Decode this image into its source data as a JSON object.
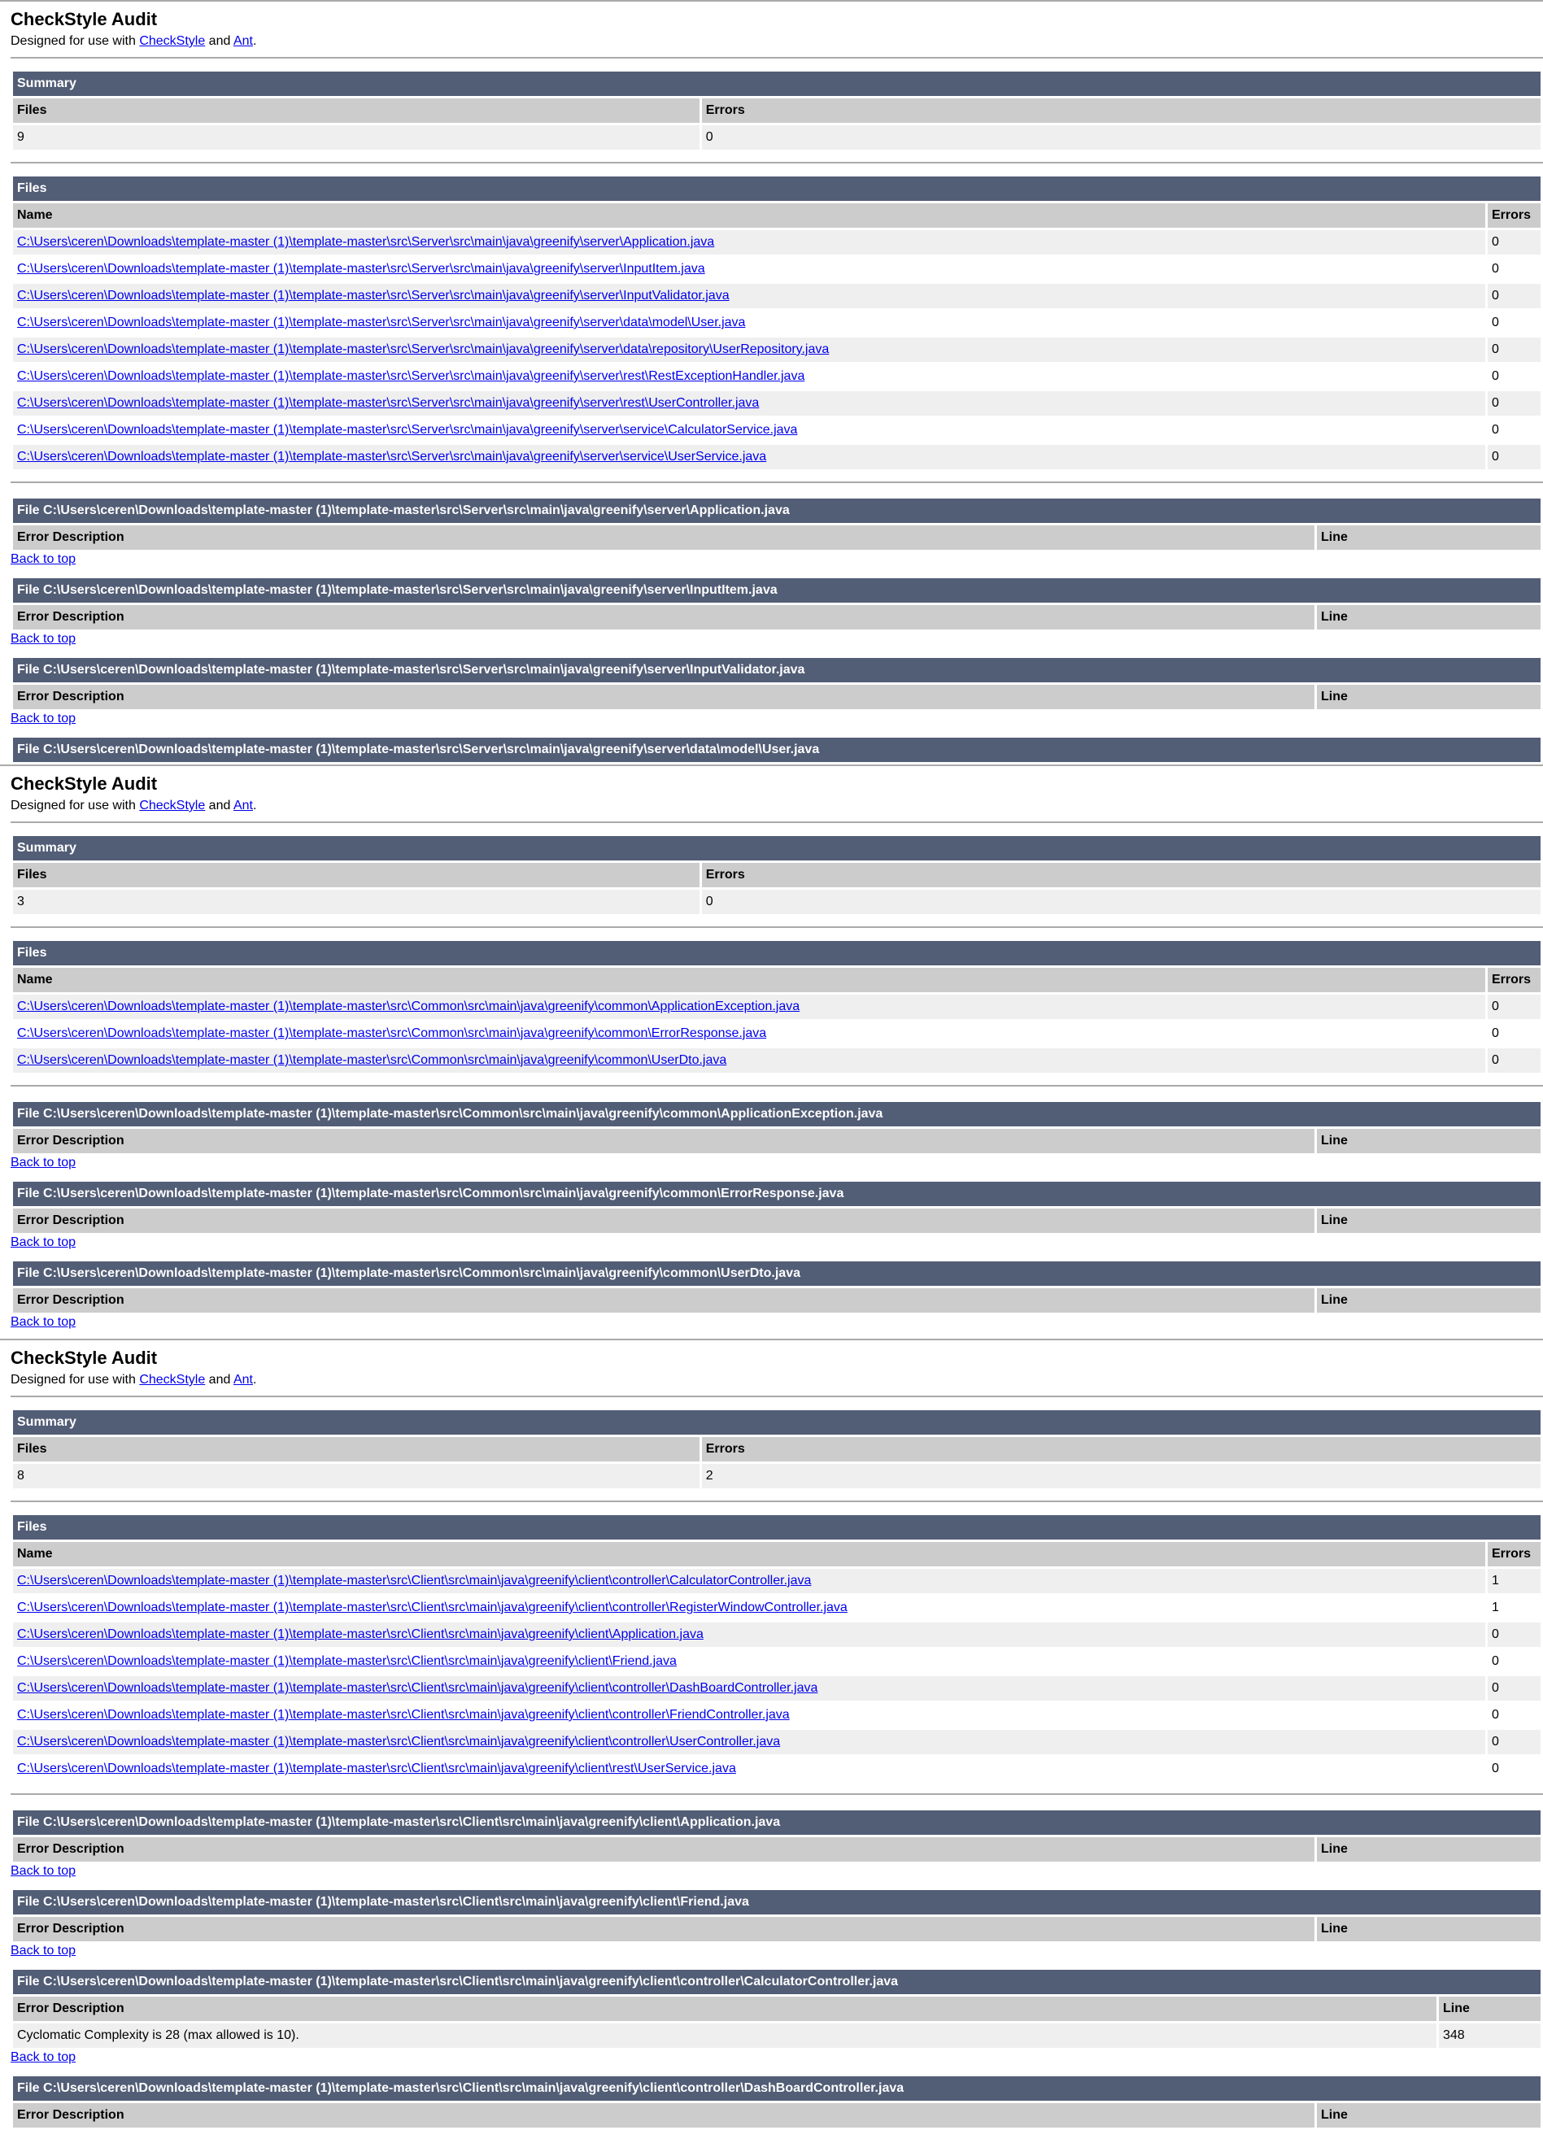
{
  "common": {
    "title": "CheckStyle Audit",
    "designed_prefix": "Designed for use with ",
    "checkstyle_link": "CheckStyle",
    "and": " and ",
    "ant_link": "Ant",
    "period": ".",
    "summary": "Summary",
    "files_col": "Files",
    "errors_col": "Errors",
    "files_header": "Files",
    "name_col": "Name",
    "error_desc_col": "Error Description",
    "line_col": "Line",
    "back_to_top": "Back to top",
    "file_prefix": "File "
  },
  "reports": [
    {
      "files_count": "9",
      "errors_count": "0",
      "files": [
        {
          "name": "C:\\Users\\ceren\\Downloads\\template-master (1)\\template-master\\src\\Server\\src\\main\\java\\greenify\\server\\Application.java",
          "errors": "0"
        },
        {
          "name": "C:\\Users\\ceren\\Downloads\\template-master (1)\\template-master\\src\\Server\\src\\main\\java\\greenify\\server\\InputItem.java",
          "errors": "0"
        },
        {
          "name": "C:\\Users\\ceren\\Downloads\\template-master (1)\\template-master\\src\\Server\\src\\main\\java\\greenify\\server\\InputValidator.java",
          "errors": "0"
        },
        {
          "name": "C:\\Users\\ceren\\Downloads\\template-master (1)\\template-master\\src\\Server\\src\\main\\java\\greenify\\server\\data\\model\\User.java",
          "errors": "0"
        },
        {
          "name": "C:\\Users\\ceren\\Downloads\\template-master (1)\\template-master\\src\\Server\\src\\main\\java\\greenify\\server\\data\\repository\\UserRepository.java",
          "errors": "0"
        },
        {
          "name": "C:\\Users\\ceren\\Downloads\\template-master (1)\\template-master\\src\\Server\\src\\main\\java\\greenify\\server\\rest\\RestExceptionHandler.java",
          "errors": "0"
        },
        {
          "name": "C:\\Users\\ceren\\Downloads\\template-master (1)\\template-master\\src\\Server\\src\\main\\java\\greenify\\server\\rest\\UserController.java",
          "errors": "0"
        },
        {
          "name": "C:\\Users\\ceren\\Downloads\\template-master (1)\\template-master\\src\\Server\\src\\main\\java\\greenify\\server\\service\\CalculatorService.java",
          "errors": "0"
        },
        {
          "name": "C:\\Users\\ceren\\Downloads\\template-master (1)\\template-master\\src\\Server\\src\\main\\java\\greenify\\server\\service\\UserService.java",
          "errors": "0"
        }
      ],
      "sections": [
        {
          "file": "C:\\Users\\ceren\\Downloads\\template-master (1)\\template-master\\src\\Server\\src\\main\\java\\greenify\\server\\Application.java",
          "errors": []
        },
        {
          "file": "C:\\Users\\ceren\\Downloads\\template-master (1)\\template-master\\src\\Server\\src\\main\\java\\greenify\\server\\InputItem.java",
          "errors": []
        },
        {
          "file": "C:\\Users\\ceren\\Downloads\\template-master (1)\\template-master\\src\\Server\\src\\main\\java\\greenify\\server\\InputValidator.java",
          "errors": []
        },
        {
          "file": "C:\\Users\\ceren\\Downloads\\template-master (1)\\template-master\\src\\Server\\src\\main\\java\\greenify\\server\\data\\model\\User.java",
          "errors": [],
          "truncated": true
        }
      ]
    },
    {
      "files_count": "3",
      "errors_count": "0",
      "files": [
        {
          "name": "C:\\Users\\ceren\\Downloads\\template-master (1)\\template-master\\src\\Common\\src\\main\\java\\greenify\\common\\ApplicationException.java",
          "errors": "0"
        },
        {
          "name": "C:\\Users\\ceren\\Downloads\\template-master (1)\\template-master\\src\\Common\\src\\main\\java\\greenify\\common\\ErrorResponse.java",
          "errors": "0"
        },
        {
          "name": "C:\\Users\\ceren\\Downloads\\template-master (1)\\template-master\\src\\Common\\src\\main\\java\\greenify\\common\\UserDto.java",
          "errors": "0"
        }
      ],
      "sections": [
        {
          "file": "C:\\Users\\ceren\\Downloads\\template-master (1)\\template-master\\src\\Common\\src\\main\\java\\greenify\\common\\ApplicationException.java",
          "errors": []
        },
        {
          "file": "C:\\Users\\ceren\\Downloads\\template-master (1)\\template-master\\src\\Common\\src\\main\\java\\greenify\\common\\ErrorResponse.java",
          "errors": []
        },
        {
          "file": "C:\\Users\\ceren\\Downloads\\template-master (1)\\template-master\\src\\Common\\src\\main\\java\\greenify\\common\\UserDto.java",
          "errors": []
        }
      ]
    },
    {
      "files_count": "8",
      "errors_count": "2",
      "files": [
        {
          "name": "C:\\Users\\ceren\\Downloads\\template-master (1)\\template-master\\src\\Client\\src\\main\\java\\greenify\\client\\controller\\CalculatorController.java",
          "errors": "1"
        },
        {
          "name": "C:\\Users\\ceren\\Downloads\\template-master (1)\\template-master\\src\\Client\\src\\main\\java\\greenify\\client\\controller\\RegisterWindowController.java",
          "errors": "1"
        },
        {
          "name": "C:\\Users\\ceren\\Downloads\\template-master (1)\\template-master\\src\\Client\\src\\main\\java\\greenify\\client\\Application.java",
          "errors": "0"
        },
        {
          "name": "C:\\Users\\ceren\\Downloads\\template-master (1)\\template-master\\src\\Client\\src\\main\\java\\greenify\\client\\Friend.java",
          "errors": "0"
        },
        {
          "name": "C:\\Users\\ceren\\Downloads\\template-master (1)\\template-master\\src\\Client\\src\\main\\java\\greenify\\client\\controller\\DashBoardController.java",
          "errors": "0"
        },
        {
          "name": "C:\\Users\\ceren\\Downloads\\template-master (1)\\template-master\\src\\Client\\src\\main\\java\\greenify\\client\\controller\\FriendController.java",
          "errors": "0"
        },
        {
          "name": "C:\\Users\\ceren\\Downloads\\template-master (1)\\template-master\\src\\Client\\src\\main\\java\\greenify\\client\\controller\\UserController.java",
          "errors": "0"
        },
        {
          "name": "C:\\Users\\ceren\\Downloads\\template-master (1)\\template-master\\src\\Client\\src\\main\\java\\greenify\\client\\rest\\UserService.java",
          "errors": "0"
        }
      ],
      "sections": [
        {
          "file": "C:\\Users\\ceren\\Downloads\\template-master (1)\\template-master\\src\\Client\\src\\main\\java\\greenify\\client\\Application.java",
          "errors": []
        },
        {
          "file": "C:\\Users\\ceren\\Downloads\\template-master (1)\\template-master\\src\\Client\\src\\main\\java\\greenify\\client\\Friend.java",
          "errors": []
        },
        {
          "file": "C:\\Users\\ceren\\Downloads\\template-master (1)\\template-master\\src\\Client\\src\\main\\java\\greenify\\client\\controller\\CalculatorController.java",
          "errors": [
            {
              "description": "Cyclomatic Complexity is 28 (max allowed is 10).",
              "line": "348"
            }
          ]
        },
        {
          "file": "C:\\Users\\ceren\\Downloads\\template-master (1)\\template-master\\src\\Client\\src\\main\\java\\greenify\\client\\controller\\DashBoardController.java",
          "errors": []
        }
      ]
    }
  ]
}
